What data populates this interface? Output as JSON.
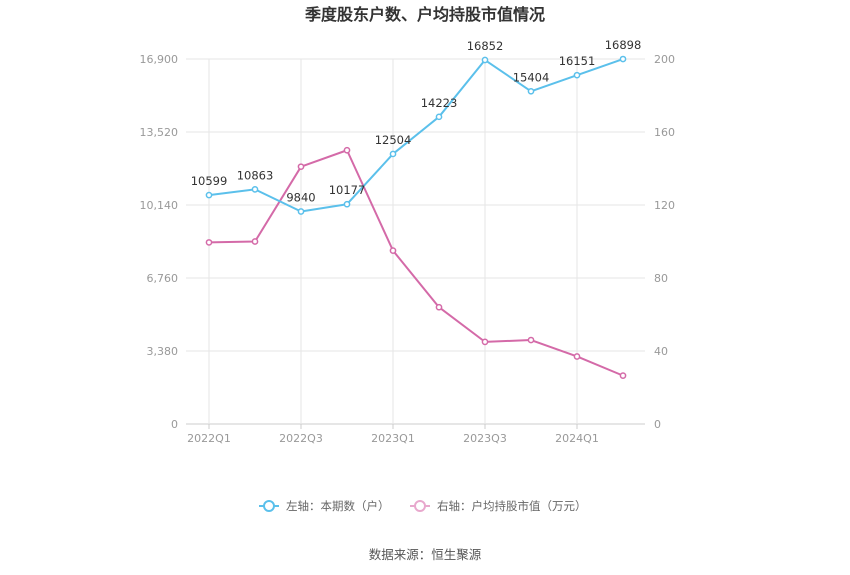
{
  "chart_data": {
    "type": "line",
    "title": "季度股东户数、户均持股市值情况",
    "source": "数据来源：恒生聚源",
    "categories": [
      "2022Q1",
      "2022Q2",
      "2022Q3",
      "2022Q4",
      "2023Q1",
      "2023Q2",
      "2023Q3",
      "2023Q4",
      "2024Q1",
      "2024Q2"
    ],
    "x_tick_labels": [
      "2022Q1",
      "2022Q3",
      "2023Q1",
      "2023Q3",
      "2024Q1"
    ],
    "left_axis": {
      "ylim": [
        0,
        16900
      ],
      "ticks": [
        0,
        3380,
        6760,
        10140,
        13520,
        16900
      ],
      "tick_labels": [
        "0",
        "3,380",
        "6,760",
        "10,140",
        "13,520",
        "16,900"
      ]
    },
    "right_axis": {
      "ylim": [
        0,
        200
      ],
      "ticks": [
        0,
        40,
        80,
        120,
        160,
        200
      ],
      "tick_labels": [
        "0",
        "40",
        "80",
        "120",
        "160",
        "200"
      ]
    },
    "series": [
      {
        "name": "左轴：本期数（户）",
        "axis": "left",
        "color": "#5bc0eb",
        "values": [
          10599,
          10863,
          9840,
          10177,
          12504,
          14223,
          16852,
          15404,
          16151,
          16898
        ],
        "labels": [
          "10599",
          "10863",
          "9840",
          "10177",
          "12504",
          "14223",
          "16852",
          "15404",
          "16151",
          "16898"
        ]
      },
      {
        "name": "右轴：户均持股市值（万元）",
        "axis": "right",
        "color": "#d46aa8",
        "values": [
          99.5,
          100,
          141,
          150,
          95,
          64,
          45,
          46,
          37,
          26.5
        ]
      }
    ],
    "grid": true,
    "legend_position": "bottom"
  }
}
